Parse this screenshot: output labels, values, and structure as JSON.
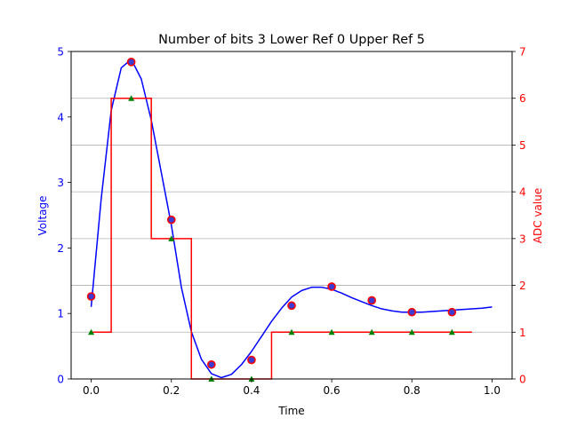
{
  "chart_data": {
    "type": "line",
    "title": "Number of bits 3 Lower Ref 0 Upper Ref 5",
    "xlabel": "Time",
    "ylabel_left": "Voltage",
    "ylabel_right": "ADC value",
    "xlim": [
      -0.05,
      1.05
    ],
    "ylim_left": [
      0,
      5
    ],
    "ylim_right": [
      0,
      7
    ],
    "x_ticks": [
      "0.0",
      "0.2",
      "0.4",
      "0.6",
      "0.8",
      "1.0"
    ],
    "x_tick_values": [
      0.0,
      0.2,
      0.4,
      0.6,
      0.8,
      1.0
    ],
    "y_left_ticks": [
      "0",
      "1",
      "2",
      "3",
      "4",
      "5"
    ],
    "y_left_tick_values": [
      0,
      1,
      2,
      3,
      4,
      5
    ],
    "y_right_ticks": [
      "0",
      "1",
      "2",
      "3",
      "4",
      "5",
      "6",
      "7"
    ],
    "y_right_tick_values": [
      0,
      1,
      2,
      3,
      4,
      5,
      6,
      7
    ],
    "grid_right": true,
    "colors": {
      "voltage": "#0000ff",
      "adc": "#ff0000",
      "sample": "#ff0000",
      "sample_fill": "#3c3cd0",
      "quantized": "#008000",
      "grid": "#b0b0b0"
    },
    "series": [
      {
        "kind": "voltage-curve",
        "axis": "left",
        "x": [
          0.0,
          0.025,
          0.05,
          0.075,
          0.1,
          0.125,
          0.15,
          0.175,
          0.2,
          0.225,
          0.25,
          0.275,
          0.3,
          0.325,
          0.35,
          0.375,
          0.4,
          0.425,
          0.45,
          0.475,
          0.5,
          0.525,
          0.55,
          0.575,
          0.6,
          0.625,
          0.65,
          0.675,
          0.7,
          0.725,
          0.75,
          0.775,
          0.8,
          0.825,
          0.85,
          0.875,
          0.9,
          0.925,
          0.95,
          0.975,
          1.0
        ],
        "y": [
          1.1,
          2.75,
          4.1,
          4.75,
          4.88,
          4.58,
          3.95,
          3.15,
          2.35,
          1.4,
          0.72,
          0.3,
          0.08,
          0.02,
          0.07,
          0.22,
          0.42,
          0.65,
          0.88,
          1.08,
          1.25,
          1.35,
          1.4,
          1.4,
          1.37,
          1.31,
          1.24,
          1.18,
          1.12,
          1.07,
          1.04,
          1.02,
          1.02,
          1.02,
          1.03,
          1.04,
          1.05,
          1.06,
          1.07,
          1.08,
          1.1
        ]
      },
      {
        "kind": "adc-step",
        "axis": "right",
        "x": [
          0.0,
          0.05,
          0.05,
          0.15,
          0.15,
          0.25,
          0.25,
          0.45,
          0.45,
          0.95
        ],
        "y": [
          1,
          1,
          6,
          6,
          3,
          3,
          0,
          0,
          1,
          1
        ]
      },
      {
        "kind": "samples",
        "axis": "left",
        "x": [
          0.0,
          0.1,
          0.2,
          0.3,
          0.4,
          0.5,
          0.6,
          0.7,
          0.8,
          0.9
        ],
        "y": [
          1.26,
          4.84,
          2.43,
          0.22,
          0.29,
          1.12,
          1.41,
          1.2,
          1.02,
          1.02
        ]
      },
      {
        "kind": "quantized",
        "axis": "right",
        "x": [
          0.0,
          0.1,
          0.2,
          0.3,
          0.4,
          0.5,
          0.6,
          0.7,
          0.8,
          0.9
        ],
        "y": [
          1,
          6,
          3,
          0,
          0,
          1,
          1,
          1,
          1,
          1
        ]
      }
    ]
  }
}
